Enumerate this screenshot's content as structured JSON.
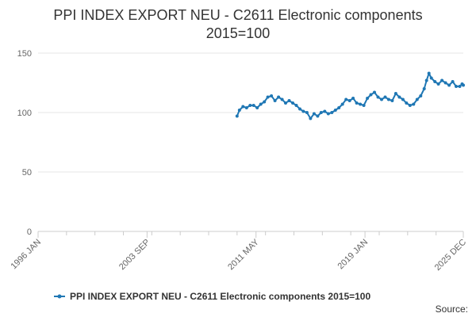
{
  "chart_data": {
    "type": "line",
    "title": "PPI INDEX EXPORT NEU - C2611 Electronic components",
    "subtitle": "2015=100",
    "xlabel": "",
    "ylabel": "",
    "ylim": [
      0,
      150
    ],
    "y_ticks": [
      0,
      50,
      100,
      150
    ],
    "x_range": [
      "1996-01",
      "2025-12"
    ],
    "x_ticks": [
      {
        "date": "1996-01",
        "label": "1996 JAN"
      },
      {
        "date": "2003-09",
        "label": "2003 SEP"
      },
      {
        "date": "2011-05",
        "label": "2011 MAY"
      },
      {
        "date": "2019-01",
        "label": "2019 JAN"
      },
      {
        "date": "2025-12",
        "label": "2025 DEC"
      }
    ],
    "grid": {
      "horizontal": true,
      "vertical": false
    },
    "legend_position": "bottom",
    "series": [
      {
        "name": "PPI INDEX EXPORT NEU - C2611 Electronic components 2015=100",
        "color": "#1f77b4",
        "points": [
          [
            "2010-01",
            97
          ],
          [
            "2010-03",
            102
          ],
          [
            "2010-06",
            105
          ],
          [
            "2010-09",
            104
          ],
          [
            "2010-12",
            106
          ],
          [
            "2011-03",
            106
          ],
          [
            "2011-06",
            104
          ],
          [
            "2011-09",
            107
          ],
          [
            "2011-12",
            109
          ],
          [
            "2012-03",
            113
          ],
          [
            "2012-06",
            114
          ],
          [
            "2012-09",
            110
          ],
          [
            "2012-12",
            113
          ],
          [
            "2013-03",
            111
          ],
          [
            "2013-06",
            108
          ],
          [
            "2013-09",
            110
          ],
          [
            "2013-12",
            108
          ],
          [
            "2014-03",
            106
          ],
          [
            "2014-06",
            103
          ],
          [
            "2014-09",
            101
          ],
          [
            "2014-12",
            100
          ],
          [
            "2015-03",
            95
          ],
          [
            "2015-06",
            99
          ],
          [
            "2015-09",
            97
          ],
          [
            "2015-12",
            100
          ],
          [
            "2016-03",
            101
          ],
          [
            "2016-06",
            99
          ],
          [
            "2016-09",
            100
          ],
          [
            "2016-12",
            102
          ],
          [
            "2017-03",
            104
          ],
          [
            "2017-06",
            107
          ],
          [
            "2017-09",
            111
          ],
          [
            "2017-12",
            110
          ],
          [
            "2018-03",
            112
          ],
          [
            "2018-06",
            108
          ],
          [
            "2018-09",
            107
          ],
          [
            "2018-12",
            106
          ],
          [
            "2019-03",
            112
          ],
          [
            "2019-06",
            115
          ],
          [
            "2019-09",
            117
          ],
          [
            "2019-12",
            113
          ],
          [
            "2020-03",
            111
          ],
          [
            "2020-06",
            113
          ],
          [
            "2020-09",
            111
          ],
          [
            "2020-12",
            110
          ],
          [
            "2021-03",
            116
          ],
          [
            "2021-06",
            113
          ],
          [
            "2021-09",
            111
          ],
          [
            "2021-12",
            108
          ],
          [
            "2022-03",
            106
          ],
          [
            "2022-06",
            107
          ],
          [
            "2022-09",
            111
          ],
          [
            "2022-12",
            114
          ],
          [
            "2023-03",
            120
          ],
          [
            "2023-05",
            127
          ],
          [
            "2023-07",
            133
          ],
          [
            "2023-09",
            129
          ],
          [
            "2023-12",
            126
          ],
          [
            "2024-03",
            124
          ],
          [
            "2024-06",
            127
          ],
          [
            "2024-09",
            125
          ],
          [
            "2024-12",
            123
          ],
          [
            "2025-03",
            126
          ],
          [
            "2025-06",
            122
          ],
          [
            "2025-09",
            122
          ],
          [
            "2025-11",
            124
          ],
          [
            "2025-12",
            123
          ]
        ]
      }
    ]
  },
  "footer": {
    "source_label": "Source:"
  }
}
